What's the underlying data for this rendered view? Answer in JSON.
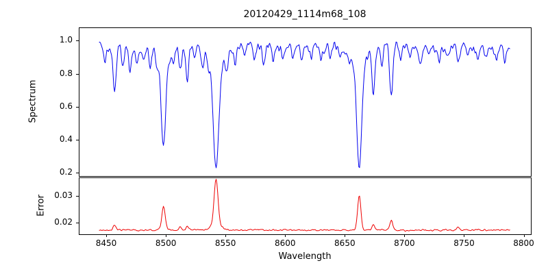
{
  "chart_data": {
    "type": "line",
    "title": "20120429_1114m68_108",
    "xlabel": "Wavelength",
    "xlim": [
      8427,
      8806
    ],
    "xticks": {
      "values": [
        8450,
        8500,
        8550,
        8600,
        8650,
        8700,
        8750,
        8800
      ],
      "labels": [
        "8450",
        "8500",
        "8550",
        "8600",
        "8650",
        "8700",
        "8750",
        "8800"
      ]
    },
    "x_start": 8444,
    "x_end": 8789,
    "x_step": 0.65,
    "grid": false,
    "legend": "none",
    "panels": [
      {
        "name": "spectrum",
        "ylabel": "Spectrum",
        "color": "#0000ee",
        "ylim": [
          0.18,
          1.08
        ],
        "yticks": {
          "values": [
            0.2,
            0.4,
            0.6,
            0.8,
            1.0
          ],
          "labels": [
            "0.2",
            "0.4",
            "0.6",
            "0.8",
            "1.0"
          ]
        },
        "continuum": 0.962,
        "noise_amp": 0.045,
        "absorption_lines": [
          [
            8449,
            0.08,
            1.0
          ],
          [
            8457,
            0.26,
            1.3
          ],
          [
            8464,
            0.14,
            1.1
          ],
          [
            8470,
            0.13,
            1.1
          ],
          [
            8476,
            0.1,
            1.0
          ],
          [
            8481,
            0.08,
            1.0
          ],
          [
            8487,
            0.12,
            1.0
          ],
          [
            8493,
            0.08,
            1.0
          ],
          [
            8498.02,
            0.48,
            1.9
          ],
          [
            8498.02,
            0.1,
            5.0
          ],
          [
            8506,
            0.1,
            1.0
          ],
          [
            8512,
            0.14,
            1.1
          ],
          [
            8518,
            0.2,
            1.2
          ],
          [
            8524,
            0.1,
            1.0
          ],
          [
            8531,
            0.08,
            1.0
          ],
          [
            8536,
            0.07,
            1.0
          ],
          [
            8542.09,
            0.6,
            2.2
          ],
          [
            8542.09,
            0.14,
            6.0
          ],
          [
            8551,
            0.1,
            1.0
          ],
          [
            8558,
            0.08,
            1.0
          ],
          [
            8566,
            0.07,
            1.0
          ],
          [
            8574,
            0.06,
            1.0
          ],
          [
            8582,
            0.1,
            1.1
          ],
          [
            8590,
            0.07,
            1.0
          ],
          [
            8598,
            0.1,
            1.1
          ],
          [
            8606,
            0.06,
            1.0
          ],
          [
            8614,
            0.09,
            1.0
          ],
          [
            8622,
            0.08,
            1.0
          ],
          [
            8630,
            0.06,
            1.0
          ],
          [
            8638,
            0.08,
            1.0
          ],
          [
            8646,
            0.07,
            1.0
          ],
          [
            8654,
            0.06,
            1.0
          ],
          [
            8662.14,
            0.58,
            2.0
          ],
          [
            8662.14,
            0.13,
            5.5
          ],
          [
            8674,
            0.27,
            1.3
          ],
          [
            8681,
            0.08,
            1.0
          ],
          [
            8689,
            0.29,
            1.3
          ],
          [
            8697,
            0.08,
            1.0
          ],
          [
            8705,
            0.07,
            1.0
          ],
          [
            8713,
            0.1,
            1.1
          ],
          [
            8721,
            0.06,
            1.0
          ],
          [
            8729,
            0.09,
            1.0
          ],
          [
            8737,
            0.07,
            1.0
          ],
          [
            8745,
            0.1,
            1.1
          ],
          [
            8753,
            0.07,
            1.0
          ],
          [
            8761,
            0.08,
            1.0
          ],
          [
            8769,
            0.06,
            1.0
          ],
          [
            8777,
            0.09,
            1.0
          ],
          [
            8784,
            0.07,
            1.0
          ]
        ]
      },
      {
        "name": "error",
        "ylabel": "Error",
        "color": "#ee0000",
        "ylim": [
          0.0155,
          0.037
        ],
        "yticks": {
          "values": [
            0.02,
            0.03
          ],
          "labels": [
            "0.02",
            "0.03"
          ]
        },
        "baseline": 0.017,
        "noise_amp": 0.0004,
        "spikes": [
          [
            8457,
            0.002,
            1.2
          ],
          [
            8498.02,
            0.009,
            1.4
          ],
          [
            8512,
            0.0012,
            1.0
          ],
          [
            8518,
            0.0015,
            1.0
          ],
          [
            8542.09,
            0.017,
            1.6
          ],
          [
            8542.09,
            0.0022,
            4.5
          ],
          [
            8662.14,
            0.013,
            1.4
          ],
          [
            8674,
            0.0018,
            1.1
          ],
          [
            8689,
            0.0036,
            1.2
          ],
          [
            8745,
            0.001,
            1.0
          ]
        ]
      }
    ],
    "prominent_features": {
      "description": "Ca II triplet absorption lines with matching error spikes",
      "line_centers": [
        8498,
        8542,
        8662
      ],
      "line_minimum_flux": [
        0.38,
        0.22,
        0.25
      ],
      "error_peak_values": [
        0.026,
        0.036,
        0.03
      ]
    }
  }
}
